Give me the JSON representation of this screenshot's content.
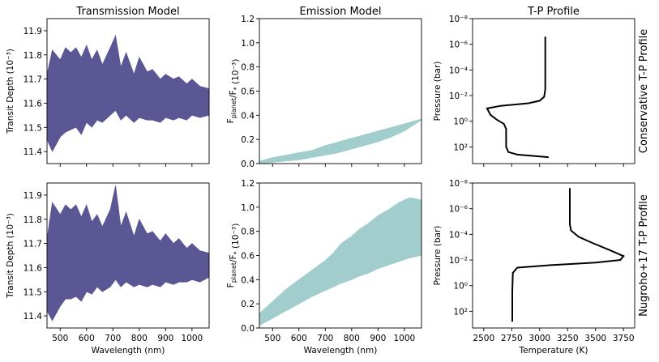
{
  "colors": {
    "transmission": "#5b5794",
    "emission": "#a2cdcd",
    "profile": "#000000"
  },
  "column_titles": [
    "Transmission Model",
    "Emission Model",
    "T-P Profile"
  ],
  "row_labels": [
    "Conservative  T-P Profile",
    "Nugroho+17  T-P Profile"
  ],
  "chart_data": [
    {
      "id": "trans-top",
      "type": "area",
      "row": 0,
      "col": 0,
      "title": "Transmission Model",
      "xlabel": "",
      "ylabel": "Transit Depth (10⁻³)",
      "xlim": [
        450,
        1065
      ],
      "ylim": [
        11.35,
        11.95
      ],
      "xticks": [
        500,
        600,
        700,
        800,
        900,
        1000
      ],
      "xtick_labels": [],
      "yticks": [
        11.4,
        11.5,
        11.6,
        11.7,
        11.8,
        11.9
      ],
      "ytick_labels": [
        "11.4",
        "11.5",
        "11.6",
        "11.7",
        "11.8",
        "11.9"
      ],
      "x": [
        450,
        470,
        500,
        520,
        540,
        560,
        580,
        600,
        620,
        640,
        660,
        690,
        710,
        730,
        750,
        780,
        800,
        830,
        850,
        880,
        900,
        930,
        950,
        980,
        1000,
        1030,
        1065
      ],
      "upper": [
        11.72,
        11.82,
        11.78,
        11.83,
        11.81,
        11.83,
        11.79,
        11.84,
        11.78,
        11.82,
        11.76,
        11.83,
        11.88,
        11.75,
        11.81,
        11.72,
        11.79,
        11.73,
        11.74,
        11.7,
        11.72,
        11.7,
        11.71,
        11.68,
        11.7,
        11.67,
        11.66
      ],
      "lower": [
        11.45,
        11.4,
        11.46,
        11.48,
        11.49,
        11.5,
        11.47,
        11.52,
        11.5,
        11.53,
        11.52,
        11.55,
        11.57,
        11.53,
        11.55,
        11.52,
        11.54,
        11.53,
        11.53,
        11.52,
        11.54,
        11.53,
        11.54,
        11.53,
        11.55,
        11.54,
        11.55
      ]
    },
    {
      "id": "emis-top",
      "type": "area",
      "row": 0,
      "col": 1,
      "title": "Emission Model",
      "xlabel": "",
      "ylabel": "F_planet/F_* (10⁻³)",
      "xlim": [
        450,
        1065
      ],
      "ylim": [
        0.0,
        1.2
      ],
      "xticks": [
        500,
        600,
        700,
        800,
        900,
        1000
      ],
      "xtick_labels": [],
      "yticks": [
        0.0,
        0.2,
        0.4,
        0.6,
        0.8,
        1.0,
        1.2
      ],
      "ytick_labels": [
        "0.0",
        "0.2",
        "0.4",
        "0.6",
        "0.8",
        "1.0",
        "1.2"
      ],
      "x": [
        450,
        500,
        550,
        600,
        650,
        700,
        750,
        800,
        850,
        900,
        950,
        1000,
        1065
      ],
      "upper": [
        0.02,
        0.05,
        0.07,
        0.09,
        0.11,
        0.15,
        0.18,
        0.21,
        0.24,
        0.27,
        0.3,
        0.33,
        0.37
      ],
      "lower": [
        0.0,
        0.01,
        0.02,
        0.03,
        0.05,
        0.07,
        0.09,
        0.12,
        0.15,
        0.18,
        0.22,
        0.27,
        0.36
      ]
    },
    {
      "id": "tp-top",
      "type": "line",
      "row": 0,
      "col": 2,
      "title": "T-P Profile",
      "xlabel": "",
      "ylabel": "Pressure (bar)",
      "xlim": [
        2400,
        3850
      ],
      "ylim_log10": [
        -8,
        3.3
      ],
      "y_inverted": true,
      "xticks": [
        2500,
        2750,
        3000,
        3250,
        3500,
        3750
      ],
      "xtick_labels": [],
      "yticks_log10": [
        -8,
        -6,
        -4,
        -2,
        0,
        2
      ],
      "ytick_labels": [
        "10⁻⁸",
        "10⁻⁶",
        "10⁻⁴",
        "10⁻²",
        "10⁰",
        "10²"
      ],
      "temperature": [
        3050,
        3050,
        3050,
        3040,
        3000,
        2900,
        2650,
        2530,
        2560,
        2620,
        2680,
        2700,
        2700,
        2700,
        2720,
        2800,
        3080
      ],
      "log10_pressure": [
        -6.6,
        -4.0,
        -2.5,
        -1.9,
        -1.6,
        -1.4,
        -1.2,
        -1.0,
        -0.5,
        -0.1,
        0.2,
        0.6,
        1.4,
        2.0,
        2.4,
        2.6,
        2.8
      ]
    },
    {
      "id": "trans-bottom",
      "type": "area",
      "row": 1,
      "col": 0,
      "title": "",
      "xlabel": "Wavelength (nm)",
      "ylabel": "Transit Depth (10⁻³)",
      "xlim": [
        450,
        1065
      ],
      "ylim": [
        11.35,
        11.95
      ],
      "xticks": [
        500,
        600,
        700,
        800,
        900,
        1000
      ],
      "xtick_labels": [
        "500",
        "600",
        "700",
        "800",
        "900",
        "1000"
      ],
      "yticks": [
        11.4,
        11.5,
        11.6,
        11.7,
        11.8,
        11.9
      ],
      "ytick_labels": [
        "11.4",
        "11.5",
        "11.6",
        "11.7",
        "11.8",
        "11.9"
      ],
      "x": [
        450,
        470,
        500,
        520,
        540,
        560,
        580,
        600,
        620,
        640,
        660,
        690,
        710,
        730,
        750,
        780,
        800,
        830,
        850,
        880,
        900,
        930,
        950,
        980,
        1000,
        1030,
        1065
      ],
      "upper": [
        11.72,
        11.87,
        11.82,
        11.86,
        11.84,
        11.86,
        11.81,
        11.86,
        11.79,
        11.82,
        11.77,
        11.84,
        11.94,
        11.77,
        11.83,
        11.73,
        11.8,
        11.74,
        11.75,
        11.71,
        11.74,
        11.7,
        11.72,
        11.68,
        11.7,
        11.67,
        11.66
      ],
      "lower": [
        11.42,
        11.38,
        11.44,
        11.47,
        11.47,
        11.48,
        11.46,
        11.5,
        11.49,
        11.52,
        11.5,
        11.52,
        11.55,
        11.52,
        11.54,
        11.52,
        11.53,
        11.52,
        11.53,
        11.52,
        11.54,
        11.53,
        11.54,
        11.54,
        11.55,
        11.54,
        11.56
      ]
    },
    {
      "id": "emis-bottom",
      "type": "area",
      "row": 1,
      "col": 1,
      "title": "",
      "xlabel": "Wavelength (nm)",
      "ylabel": "F_planet/F_* (10⁻³)",
      "xlim": [
        450,
        1065
      ],
      "ylim": [
        0.0,
        1.2
      ],
      "xticks": [
        500,
        600,
        700,
        800,
        900,
        1000
      ],
      "xtick_labels": [
        "500",
        "600",
        "700",
        "800",
        "900",
        "1000"
      ],
      "yticks": [
        0.0,
        0.2,
        0.4,
        0.6,
        0.8,
        1.0,
        1.2
      ],
      "ytick_labels": [
        "0.0",
        "0.2",
        "0.4",
        "0.6",
        "0.8",
        "1.0",
        "1.2"
      ],
      "x": [
        450,
        500,
        550,
        600,
        650,
        700,
        730,
        760,
        800,
        830,
        860,
        900,
        940,
        980,
        1020,
        1065
      ],
      "upper": [
        0.12,
        0.22,
        0.32,
        0.4,
        0.48,
        0.56,
        0.62,
        0.7,
        0.76,
        0.82,
        0.86,
        0.93,
        0.98,
        1.04,
        1.08,
        1.06
      ],
      "lower": [
        0.02,
        0.08,
        0.14,
        0.2,
        0.26,
        0.31,
        0.34,
        0.37,
        0.4,
        0.43,
        0.45,
        0.49,
        0.52,
        0.55,
        0.58,
        0.6
      ]
    },
    {
      "id": "tp-bottom",
      "type": "line",
      "row": 1,
      "col": 2,
      "title": "",
      "xlabel": "Temperature (K)",
      "ylabel": "Pressure (bar)",
      "xlim": [
        2400,
        3850
      ],
      "ylim_log10": [
        -8,
        3.3
      ],
      "y_inverted": true,
      "xticks": [
        2500,
        2750,
        3000,
        3250,
        3500,
        3750
      ],
      "xtick_labels": [
        "2500",
        "2750",
        "3000",
        "3250",
        "3500",
        "3750"
      ],
      "yticks_log10": [
        -8,
        -6,
        -4,
        -2,
        0,
        2
      ],
      "ytick_labels": [
        "10⁻⁸",
        "10⁻⁶",
        "10⁻⁴",
        "10⁻²",
        "10⁰",
        "10²"
      ],
      "temperature": [
        3270,
        3270,
        3270,
        3280,
        3350,
        3480,
        3620,
        3750,
        3720,
        3500,
        3100,
        2800,
        2760,
        2755,
        2755
      ],
      "log10_pressure": [
        -7.6,
        -6.0,
        -4.8,
        -4.3,
        -3.8,
        -3.3,
        -2.8,
        -2.3,
        -2.0,
        -1.8,
        -1.6,
        -1.4,
        -1.0,
        0.5,
        2.8
      ]
    }
  ]
}
